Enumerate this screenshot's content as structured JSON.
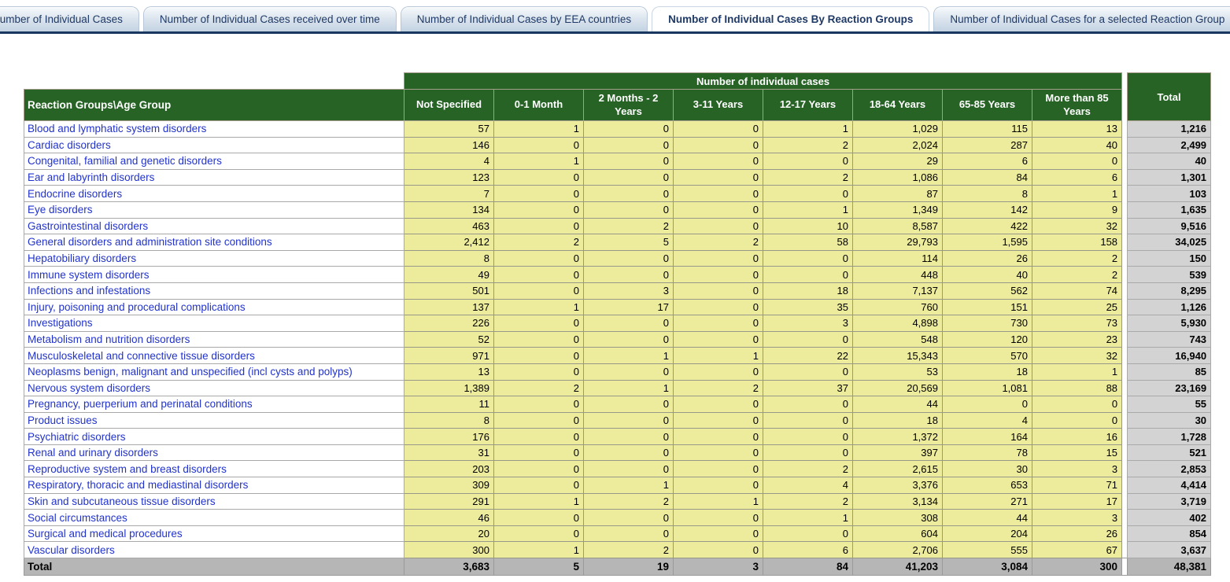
{
  "colors": {
    "header_green": "#266325",
    "cell_yellow": "#edeb9c",
    "total_col_grey": "#d3d3d3",
    "total_row_grey": "#b6b6b6",
    "link_blue": "#2233cc",
    "navy": "#17375e",
    "tab_bg": "#c3d2e2"
  },
  "tabs": [
    {
      "label": "Number of Individual Cases",
      "active": false
    },
    {
      "label": "Number of Individual Cases received over time",
      "active": false
    },
    {
      "label": "Number of Individual Cases by EEA countries",
      "active": false
    },
    {
      "label": "Number of Individual Cases By Reaction Groups",
      "active": true
    },
    {
      "label": "Number of Individual Cases for a selected Reaction Group",
      "active": false
    }
  ],
  "table": {
    "group_header": "Number of individual cases",
    "corner_header": "Reaction Groups\\Age Group",
    "total_header": "Total",
    "columns": [
      "Not Specified",
      "0-1 Month",
      "2 Months - 2 Years",
      "3-11 Years",
      "12-17 Years",
      "18-64 Years",
      "65-85 Years",
      "More than 85 Years"
    ],
    "rows": [
      {
        "label": "Blood and lymphatic system disorders",
        "values": [
          "57",
          "1",
          "0",
          "0",
          "1",
          "1,029",
          "115",
          "13"
        ],
        "total": "1,216"
      },
      {
        "label": "Cardiac disorders",
        "values": [
          "146",
          "0",
          "0",
          "0",
          "2",
          "2,024",
          "287",
          "40"
        ],
        "total": "2,499"
      },
      {
        "label": "Congenital, familial and genetic disorders",
        "values": [
          "4",
          "1",
          "0",
          "0",
          "0",
          "29",
          "6",
          "0"
        ],
        "total": "40"
      },
      {
        "label": "Ear and labyrinth disorders",
        "values": [
          "123",
          "0",
          "0",
          "0",
          "2",
          "1,086",
          "84",
          "6"
        ],
        "total": "1,301"
      },
      {
        "label": "Endocrine disorders",
        "values": [
          "7",
          "0",
          "0",
          "0",
          "0",
          "87",
          "8",
          "1"
        ],
        "total": "103"
      },
      {
        "label": "Eye disorders",
        "values": [
          "134",
          "0",
          "0",
          "0",
          "1",
          "1,349",
          "142",
          "9"
        ],
        "total": "1,635"
      },
      {
        "label": "Gastrointestinal disorders",
        "values": [
          "463",
          "0",
          "2",
          "0",
          "10",
          "8,587",
          "422",
          "32"
        ],
        "total": "9,516"
      },
      {
        "label": "General disorders and administration site conditions",
        "values": [
          "2,412",
          "2",
          "5",
          "2",
          "58",
          "29,793",
          "1,595",
          "158"
        ],
        "total": "34,025"
      },
      {
        "label": "Hepatobiliary disorders",
        "values": [
          "8",
          "0",
          "0",
          "0",
          "0",
          "114",
          "26",
          "2"
        ],
        "total": "150"
      },
      {
        "label": "Immune system disorders",
        "values": [
          "49",
          "0",
          "0",
          "0",
          "0",
          "448",
          "40",
          "2"
        ],
        "total": "539"
      },
      {
        "label": "Infections and infestations",
        "values": [
          "501",
          "0",
          "3",
          "0",
          "18",
          "7,137",
          "562",
          "74"
        ],
        "total": "8,295"
      },
      {
        "label": "Injury, poisoning and procedural complications",
        "values": [
          "137",
          "1",
          "17",
          "0",
          "35",
          "760",
          "151",
          "25"
        ],
        "total": "1,126"
      },
      {
        "label": "Investigations",
        "values": [
          "226",
          "0",
          "0",
          "0",
          "3",
          "4,898",
          "730",
          "73"
        ],
        "total": "5,930"
      },
      {
        "label": "Metabolism and nutrition disorders",
        "values": [
          "52",
          "0",
          "0",
          "0",
          "0",
          "548",
          "120",
          "23"
        ],
        "total": "743"
      },
      {
        "label": "Musculoskeletal and connective tissue disorders",
        "values": [
          "971",
          "0",
          "1",
          "1",
          "22",
          "15,343",
          "570",
          "32"
        ],
        "total": "16,940"
      },
      {
        "label": "Neoplasms benign, malignant and unspecified (incl cysts and polyps)",
        "values": [
          "13",
          "0",
          "0",
          "0",
          "0",
          "53",
          "18",
          "1"
        ],
        "total": "85"
      },
      {
        "label": "Nervous system disorders",
        "values": [
          "1,389",
          "2",
          "1",
          "2",
          "37",
          "20,569",
          "1,081",
          "88"
        ],
        "total": "23,169"
      },
      {
        "label": "Pregnancy, puerperium and perinatal conditions",
        "values": [
          "11",
          "0",
          "0",
          "0",
          "0",
          "44",
          "0",
          "0"
        ],
        "total": "55"
      },
      {
        "label": "Product issues",
        "values": [
          "8",
          "0",
          "0",
          "0",
          "0",
          "18",
          "4",
          "0"
        ],
        "total": "30"
      },
      {
        "label": "Psychiatric disorders",
        "values": [
          "176",
          "0",
          "0",
          "0",
          "0",
          "1,372",
          "164",
          "16"
        ],
        "total": "1,728"
      },
      {
        "label": "Renal and urinary disorders",
        "values": [
          "31",
          "0",
          "0",
          "0",
          "0",
          "397",
          "78",
          "15"
        ],
        "total": "521"
      },
      {
        "label": "Reproductive system and breast disorders",
        "values": [
          "203",
          "0",
          "0",
          "0",
          "2",
          "2,615",
          "30",
          "3"
        ],
        "total": "2,853"
      },
      {
        "label": "Respiratory, thoracic and mediastinal disorders",
        "values": [
          "309",
          "0",
          "1",
          "0",
          "4",
          "3,376",
          "653",
          "71"
        ],
        "total": "4,414"
      },
      {
        "label": "Skin and subcutaneous tissue disorders",
        "values": [
          "291",
          "1",
          "2",
          "1",
          "2",
          "3,134",
          "271",
          "17"
        ],
        "total": "3,719"
      },
      {
        "label": "Social circumstances",
        "values": [
          "46",
          "0",
          "0",
          "0",
          "1",
          "308",
          "44",
          "3"
        ],
        "total": "402"
      },
      {
        "label": "Surgical and medical procedures",
        "values": [
          "20",
          "0",
          "0",
          "0",
          "0",
          "604",
          "204",
          "26"
        ],
        "total": "854"
      },
      {
        "label": "Vascular disorders",
        "values": [
          "300",
          "1",
          "2",
          "0",
          "6",
          "2,706",
          "555",
          "67"
        ],
        "total": "3,637"
      }
    ],
    "total_row": {
      "label": "Total",
      "values": [
        "3,683",
        "5",
        "19",
        "3",
        "84",
        "41,203",
        "3,084",
        "300"
      ],
      "total": "48,381"
    }
  }
}
